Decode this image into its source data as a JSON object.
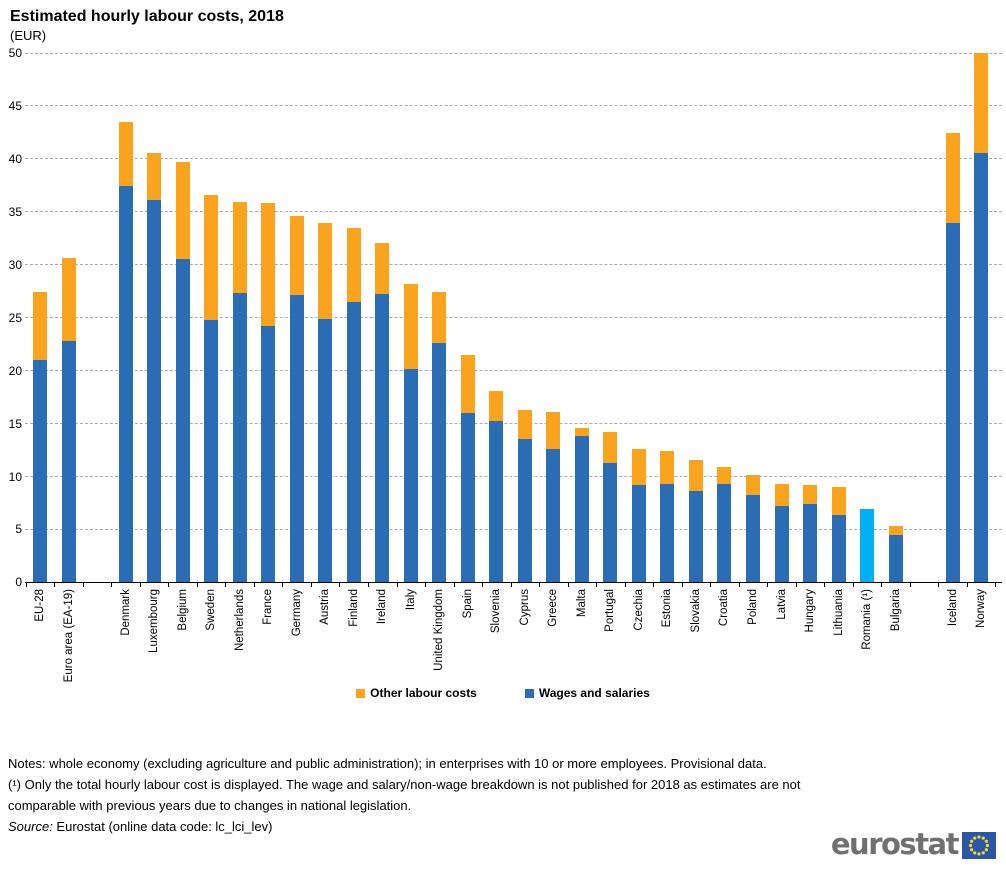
{
  "chart_data": {
    "type": "bar",
    "stacked": true,
    "title": "Estimated hourly labour costs, 2018",
    "unit_label": "(EUR)",
    "ylabel": "",
    "xlabel": "",
    "ylim": [
      0,
      50
    ],
    "yticks": [
      0,
      5,
      10,
      15,
      20,
      25,
      30,
      35,
      40,
      45,
      50
    ],
    "grid": "horizontal-dashed",
    "legend_position": "bottom-center",
    "series_colors": {
      "wages_and_salaries": "#2a6db4",
      "other_labour_costs": "#faa41e",
      "total_only": "#00b0f0"
    },
    "legend": [
      {
        "label": "Other labour costs",
        "color": "#faa41e"
      },
      {
        "label": "Wages and salaries",
        "color": "#2a6db4"
      }
    ],
    "bars": [
      {
        "label": "EU-28",
        "slot": 0,
        "wages": 21.0,
        "other": 6.4
      },
      {
        "label": "Euro area (EA-19)",
        "slot": 1,
        "wages": 22.8,
        "other": 7.8
      },
      {
        "label": "Denmark",
        "slot": 3,
        "wages": 37.4,
        "other": 6.1
      },
      {
        "label": "Luxembourg",
        "slot": 4,
        "wages": 36.1,
        "other": 4.5
      },
      {
        "label": "Belgium",
        "slot": 5,
        "wages": 30.5,
        "other": 9.2
      },
      {
        "label": "Sweden",
        "slot": 6,
        "wages": 24.8,
        "other": 11.8
      },
      {
        "label": "Netherlands",
        "slot": 7,
        "wages": 27.3,
        "other": 8.6
      },
      {
        "label": "France",
        "slot": 8,
        "wages": 24.2,
        "other": 11.6
      },
      {
        "label": "Germany",
        "slot": 9,
        "wages": 27.1,
        "other": 7.5
      },
      {
        "label": "Austria",
        "slot": 10,
        "wages": 24.9,
        "other": 9.0
      },
      {
        "label": "Finland",
        "slot": 11,
        "wages": 26.5,
        "other": 7.0
      },
      {
        "label": "Ireland",
        "slot": 12,
        "wages": 27.2,
        "other": 4.9
      },
      {
        "label": "Italy",
        "slot": 13,
        "wages": 20.2,
        "other": 8.0
      },
      {
        "label": "United Kingdom",
        "slot": 14,
        "wages": 22.6,
        "other": 4.8
      },
      {
        "label": "Spain",
        "slot": 15,
        "wages": 16.0,
        "other": 5.5
      },
      {
        "label": "Slovenia",
        "slot": 16,
        "wages": 15.2,
        "other": 2.9
      },
      {
        "label": "Cyprus",
        "slot": 17,
        "wages": 13.5,
        "other": 2.8
      },
      {
        "label": "Greece",
        "slot": 18,
        "wages": 12.6,
        "other": 3.5
      },
      {
        "label": "Malta",
        "slot": 19,
        "wages": 13.8,
        "other": 0.8
      },
      {
        "label": "Portugal",
        "slot": 20,
        "wages": 11.3,
        "other": 2.9
      },
      {
        "label": "Czechia",
        "slot": 21,
        "wages": 9.2,
        "other": 3.4
      },
      {
        "label": "Estonia",
        "slot": 22,
        "wages": 9.3,
        "other": 3.1
      },
      {
        "label": "Slovakia",
        "slot": 23,
        "wages": 8.6,
        "other": 3.0
      },
      {
        "label": "Croatia",
        "slot": 24,
        "wages": 9.3,
        "other": 1.6
      },
      {
        "label": "Poland",
        "slot": 25,
        "wages": 8.3,
        "other": 1.8
      },
      {
        "label": "Latvia",
        "slot": 26,
        "wages": 7.2,
        "other": 2.1
      },
      {
        "label": "Hungary",
        "slot": 27,
        "wages": 7.4,
        "other": 1.8
      },
      {
        "label": "Lithuania",
        "slot": 28,
        "wages": 6.4,
        "other": 2.6
      },
      {
        "label": "Romania (¹)",
        "slot": 29,
        "total_only": 6.9
      },
      {
        "label": "Bulgaria",
        "slot": 30,
        "wages": 4.5,
        "other": 0.8
      },
      {
        "label": "Iceland",
        "slot": 32,
        "wages": 33.9,
        "other": 8.5
      },
      {
        "label": "Norway",
        "slot": 33,
        "wages": 40.6,
        "other": 9.4
      }
    ]
  },
  "notes": {
    "line1": "Notes: whole economy (excluding agriculture and public administration); in enterprises with 10 or more employees. Provisional data.",
    "footnote_line1": " (¹) Only the total hourly labour cost is displayed. The wage and salary/non-wage breakdown is not published for 2018 as estimates are not",
    "footnote_line2": "comparable with previous years due to changes in national legislation.",
    "source_label": "Source:",
    "source_text": " Eurostat (online data code: lc_lci_lev)"
  },
  "logo": {
    "text": "eurostat"
  }
}
